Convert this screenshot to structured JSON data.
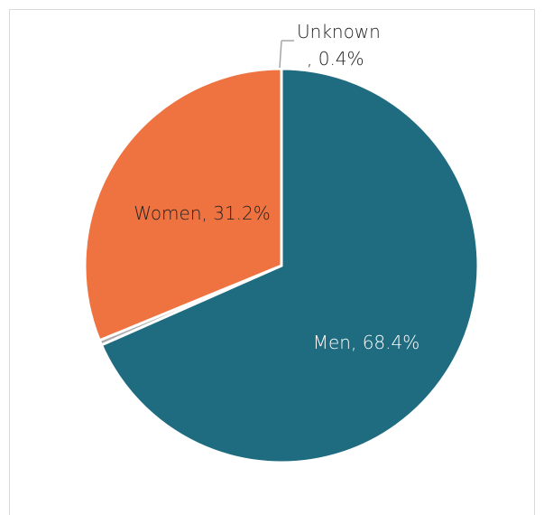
{
  "chart_data": {
    "type": "pie",
    "slices": [
      {
        "label": "Men",
        "value": 68.4,
        "display": "Men, 68.4%",
        "color": "#1f6b80",
        "label_color": "#ffffff"
      },
      {
        "label": "Unknown",
        "value": 0.4,
        "display_line1": "Unknown",
        "display_line2": ", 0.4%",
        "color": "#a9a9a9",
        "label_color": "#222222"
      },
      {
        "label": "Women",
        "value": 31.2,
        "display": "Women, 31.2%",
        "color": "#ee7340",
        "label_color": "#222222"
      }
    ],
    "start_angle": "12 o'clock",
    "direction": "clockwise",
    "legend": "none",
    "data_labels": "category name and percent"
  }
}
